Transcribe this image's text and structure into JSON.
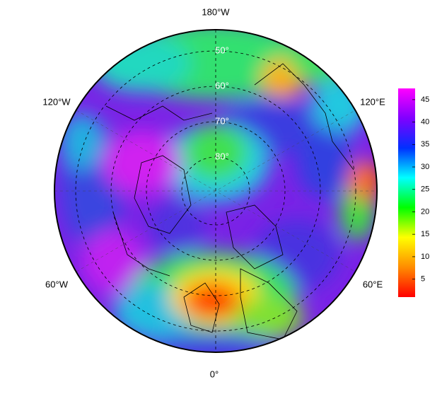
{
  "map": {
    "longitude_labels": [
      "180°W",
      "120°W",
      "60°W",
      "0°",
      "60°E",
      "120°E"
    ],
    "latitude_labels": [
      "50°",
      "60°",
      "70°",
      "80°"
    ],
    "colorbar": {
      "clim": [
        1,
        47.5
      ],
      "ticks": [
        5,
        10,
        15,
        20,
        25,
        30,
        35,
        40,
        45
      ],
      "colormap": [
        "#ff0000",
        "#ff8c00",
        "#ffff00",
        "#00ff00",
        "#00ffff",
        "#0030ff",
        "#8000ff",
        "#ff00ff"
      ]
    }
  }
}
